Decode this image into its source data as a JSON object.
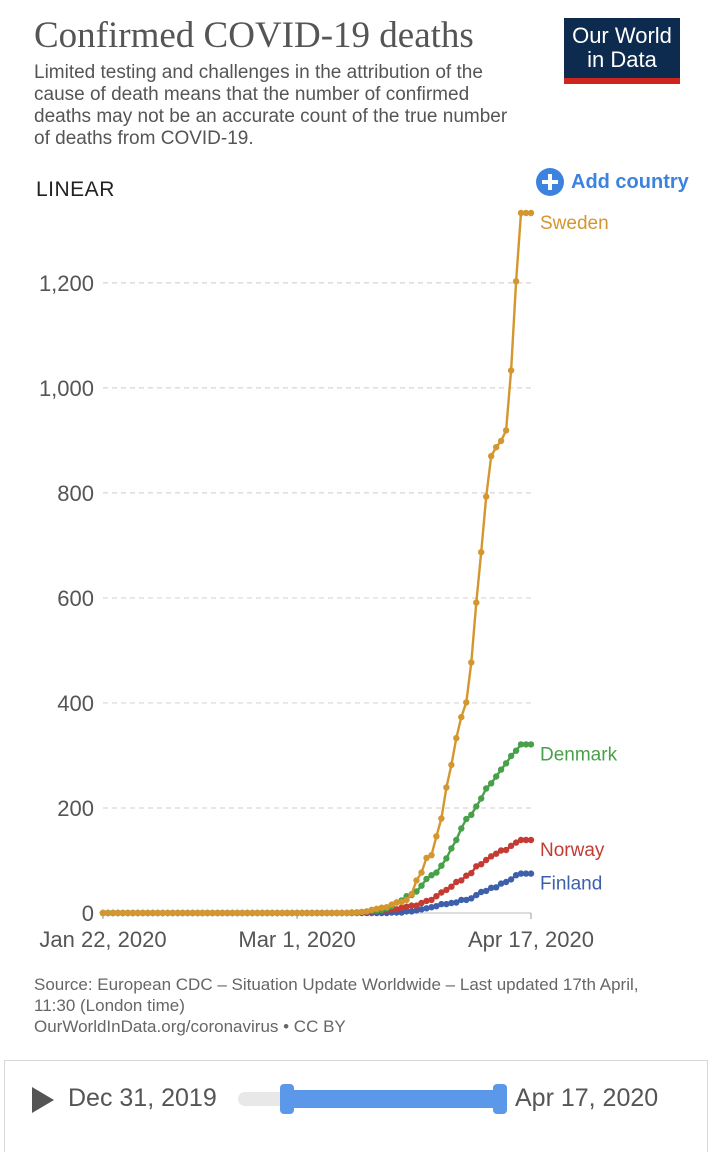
{
  "header": {
    "title": "Confirmed COVID-19 deaths",
    "subtitle": "Limited testing and challenges in the attribution of the cause of death means that the number of confirmed deaths may not be an accurate count of the true number of deaths from COVID-19.",
    "logo_line1": "Our World",
    "logo_line2": "in Data"
  },
  "controls": {
    "scale_label": "LINEAR",
    "add_country_label": "Add country"
  },
  "footer": {
    "source": "Source: European CDC – Situation Update Worldwide – Last updated 17th April, 11:30 (London time)",
    "url": "OurWorldInData.org/coronavirus • CC BY",
    "timeline_start": "Dec 31, 2019",
    "timeline_end": "Apr 17, 2020"
  },
  "colors": {
    "Sweden": "#d4962f",
    "Denmark": "#49a04a",
    "Norway": "#c43b33",
    "Finland": "#3e60aa",
    "brand_navy": "#0d2a4f",
    "brand_red": "#ce261e",
    "accent_blue": "#3c83e0"
  },
  "chart_data": {
    "type": "line",
    "x_start": "2020-01-22",
    "x_end": "2020-04-17",
    "x_tick_labels": [
      "Jan 22, 2020",
      "Mar 1, 2020",
      "Apr 17, 2020"
    ],
    "x_tick_dates": [
      "2020-01-22",
      "2020-03-01",
      "2020-04-17"
    ],
    "y_ticks": [
      0,
      200,
      400,
      600,
      800,
      1000,
      1200
    ],
    "y_tick_labels": [
      "0",
      "200",
      "400",
      "600",
      "800",
      "1,000",
      "1,200"
    ],
    "ylim": [
      0,
      1333
    ],
    "grid": true,
    "legend": "labels at line ends",
    "series_dates": [
      "2020-03-10",
      "2020-03-11",
      "2020-03-12",
      "2020-03-13",
      "2020-03-14",
      "2020-03-15",
      "2020-03-16",
      "2020-03-17",
      "2020-03-18",
      "2020-03-19",
      "2020-03-20",
      "2020-03-21",
      "2020-03-22",
      "2020-03-23",
      "2020-03-24",
      "2020-03-25",
      "2020-03-26",
      "2020-03-27",
      "2020-03-28",
      "2020-03-29",
      "2020-03-30",
      "2020-03-31",
      "2020-04-01",
      "2020-04-02",
      "2020-04-03",
      "2020-04-04",
      "2020-04-05",
      "2020-04-06",
      "2020-04-07",
      "2020-04-08",
      "2020-04-09",
      "2020-04-10",
      "2020-04-11",
      "2020-04-12",
      "2020-04-13",
      "2020-04-14",
      "2020-04-15",
      "2020-04-16",
      "2020-04-17"
    ],
    "series": [
      {
        "name": "Sweden",
        "values": [
          0,
          0,
          1,
          1,
          2,
          3,
          6,
          8,
          10,
          11,
          16,
          20,
          21,
          25,
          36,
          62,
          77,
          105,
          110,
          146,
          180,
          239,
          282,
          333,
          373,
          401,
          477,
          591,
          687,
          793,
          870,
          887,
          899,
          919,
          1033,
          1203,
          1333,
          1333,
          1333
        ]
      },
      {
        "name": "Denmark",
        "values": [
          0,
          0,
          0,
          1,
          2,
          3,
          4,
          5,
          6,
          9,
          13,
          20,
          24,
          32,
          34,
          41,
          52,
          65,
          72,
          77,
          90,
          104,
          123,
          139,
          161,
          179,
          187,
          203,
          218,
          237,
          247,
          260,
          273,
          285,
          299,
          309,
          321,
          321,
          321
        ]
      },
      {
        "name": "Norway",
        "values": [
          0,
          0,
          1,
          1,
          1,
          2,
          3,
          3,
          4,
          6,
          7,
          7,
          10,
          12,
          14,
          14,
          19,
          23,
          25,
          32,
          39,
          44,
          50,
          59,
          62,
          71,
          76,
          89,
          93,
          101,
          108,
          113,
          119,
          120,
          128,
          134,
          139,
          139,
          139
        ]
      },
      {
        "name": "Finland",
        "values": [
          0,
          0,
          0,
          0,
          0,
          0,
          0,
          0,
          0,
          0,
          1,
          1,
          1,
          3,
          3,
          5,
          7,
          9,
          11,
          13,
          17,
          17,
          19,
          20,
          25,
          25,
          28,
          34,
          40,
          42,
          48,
          49,
          56,
          59,
          64,
          72,
          75,
          75,
          75
        ]
      }
    ]
  }
}
